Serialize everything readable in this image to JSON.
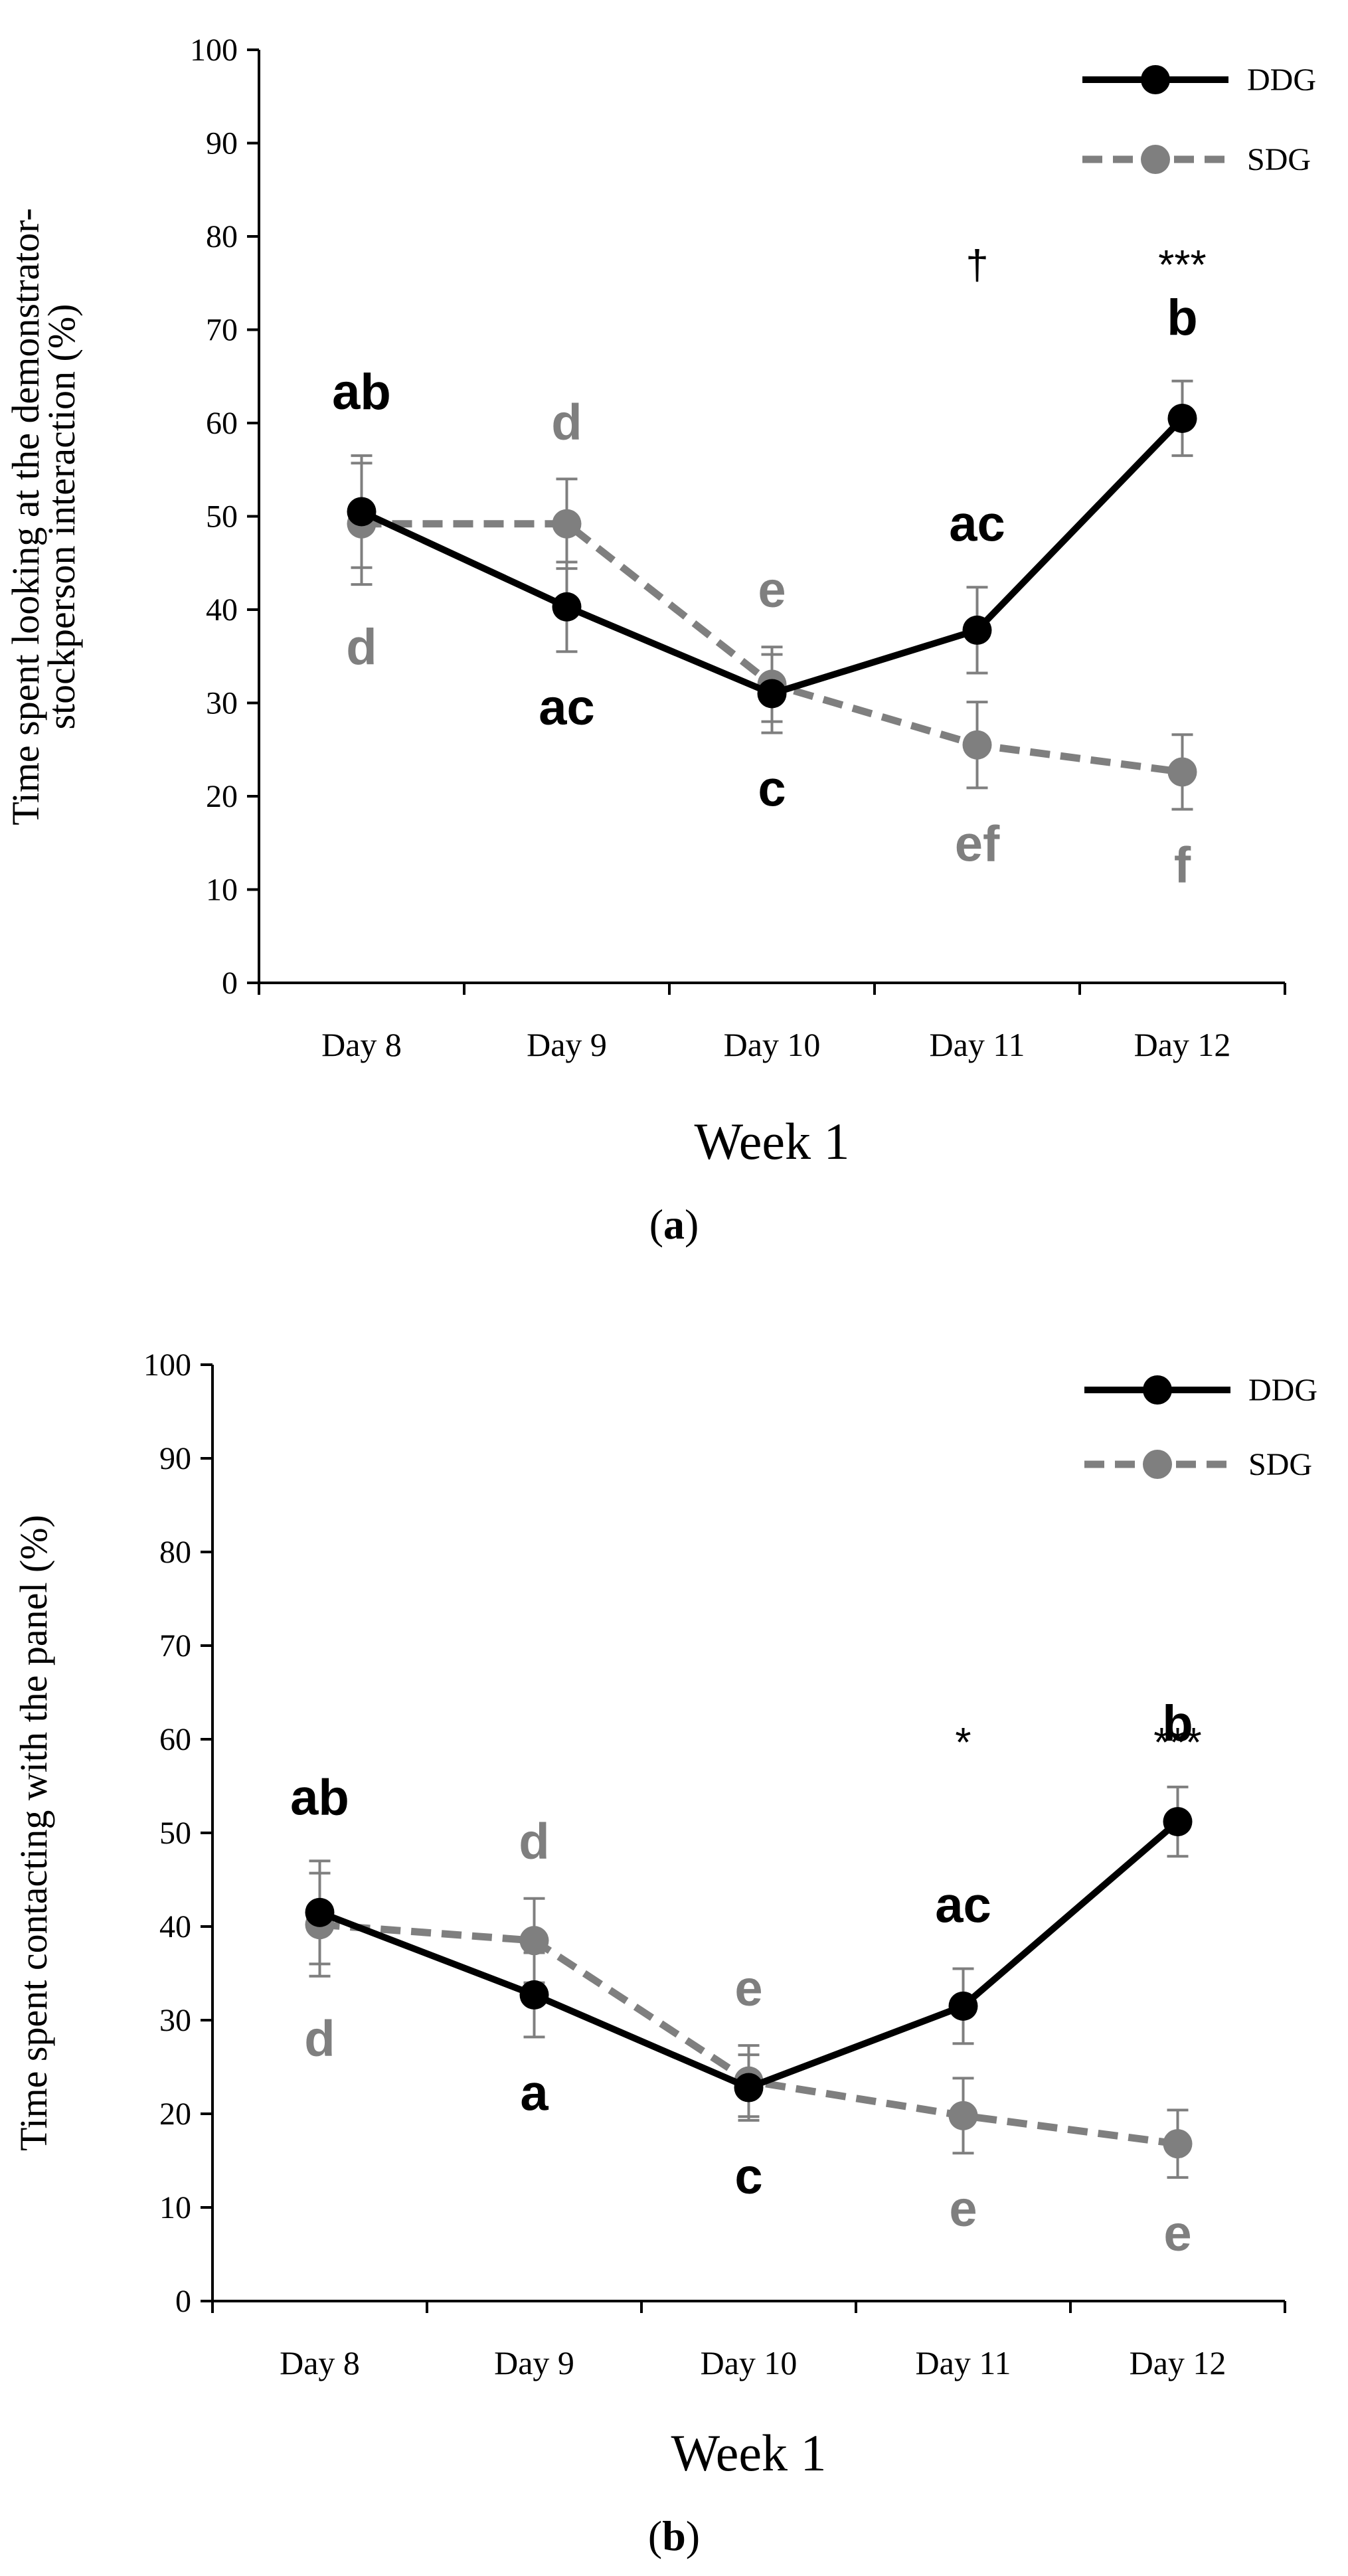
{
  "chart_data": [
    {
      "type": "line",
      "panel_label": "a",
      "categories": [
        "Day 8",
        "Day 9",
        "Day 10",
        "Day 11",
        "Day 12"
      ],
      "xlabel": "Week 1",
      "ylabel_lines": [
        "Time spent looking at the demonstrator-",
        "stockperson interaction (%)"
      ],
      "ylim": [
        0,
        100
      ],
      "yticks": [
        0,
        10,
        20,
        30,
        40,
        50,
        60,
        70,
        80,
        90,
        100
      ],
      "grid": false,
      "legend_position": "top-right",
      "series": [
        {
          "name": "DDG",
          "color": "#000000",
          "dash": false,
          "values": [
            50.5,
            40.3,
            31.0,
            37.8,
            60.5
          ],
          "errors": [
            6.0,
            4.8,
            4.2,
            4.6,
            4.0
          ],
          "letters": [
            "ab",
            "ac",
            "c",
            "ac",
            "b"
          ]
        },
        {
          "name": "SDG",
          "color": "#7f7f7f",
          "dash": true,
          "values": [
            49.2,
            49.2,
            32.0,
            25.5,
            22.6
          ],
          "errors": [
            6.5,
            4.8,
            4.0,
            4.6,
            4.0
          ],
          "letters": [
            "d",
            "d",
            "e",
            "ef",
            "f"
          ]
        }
      ],
      "significance": [
        {
          "category": "Day 11",
          "text": "†"
        },
        {
          "category": "Day 12",
          "text": "***"
        }
      ]
    },
    {
      "type": "line",
      "panel_label": "b",
      "categories": [
        "Day 8",
        "Day 9",
        "Day 10",
        "Day 11",
        "Day 12"
      ],
      "xlabel": "Week 1",
      "ylabel_lines": [
        "Time spent contacting with the panel (%)"
      ],
      "ylim": [
        0,
        100
      ],
      "yticks": [
        0,
        10,
        20,
        30,
        40,
        50,
        60,
        70,
        80,
        90,
        100
      ],
      "grid": false,
      "legend_position": "top-right",
      "series": [
        {
          "name": "DDG",
          "color": "#000000",
          "dash": false,
          "values": [
            41.5,
            32.7,
            22.8,
            31.5,
            51.2
          ],
          "errors": [
            5.5,
            4.5,
            3.5,
            4.0,
            3.7
          ],
          "letters": [
            "ab",
            "a",
            "c",
            "ac",
            "b"
          ]
        },
        {
          "name": "SDG",
          "color": "#7f7f7f",
          "dash": true,
          "values": [
            40.2,
            38.5,
            23.5,
            19.8,
            16.8
          ],
          "errors": [
            5.5,
            4.5,
            3.8,
            4.0,
            3.6
          ],
          "letters": [
            "d",
            "d",
            "e",
            "e",
            "e"
          ]
        }
      ],
      "significance": [
        {
          "category": "Day 11",
          "text": "*"
        },
        {
          "category": "Day 12",
          "text": "***"
        }
      ]
    }
  ]
}
